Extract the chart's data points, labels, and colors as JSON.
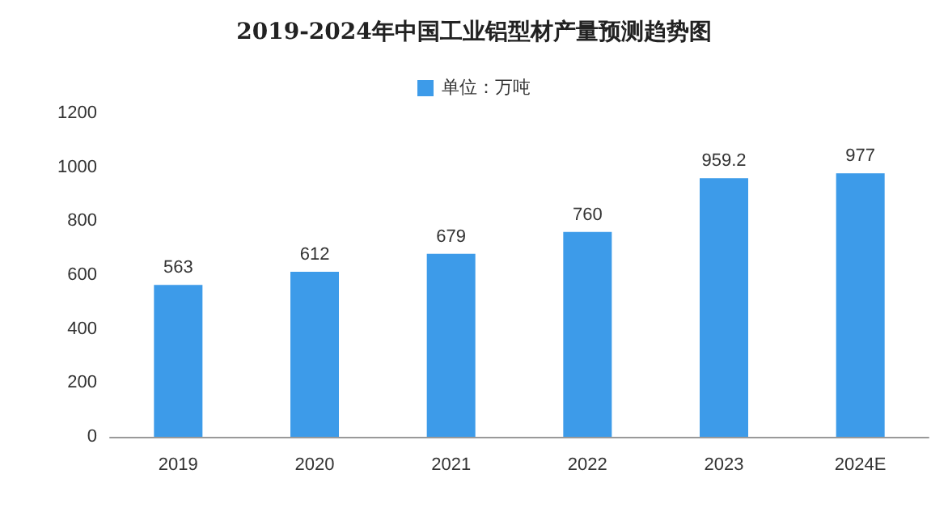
{
  "chart_data": {
    "type": "bar",
    "title": "2019-2024年中国工业铝型材产量预测趋势图",
    "categories": [
      "2019",
      "2020",
      "2021",
      "2022",
      "2023",
      "2024E"
    ],
    "series": [
      {
        "name": "单位：万吨",
        "color": "#3d9be9",
        "values": [
          563,
          612,
          679,
          760,
          959.2,
          977
        ]
      }
    ],
    "ylim": [
      0,
      1200
    ],
    "yticks": [
      0,
      200,
      400,
      600,
      800,
      1000,
      1200
    ],
    "grid": false,
    "legend": "top",
    "data_labels": true
  }
}
